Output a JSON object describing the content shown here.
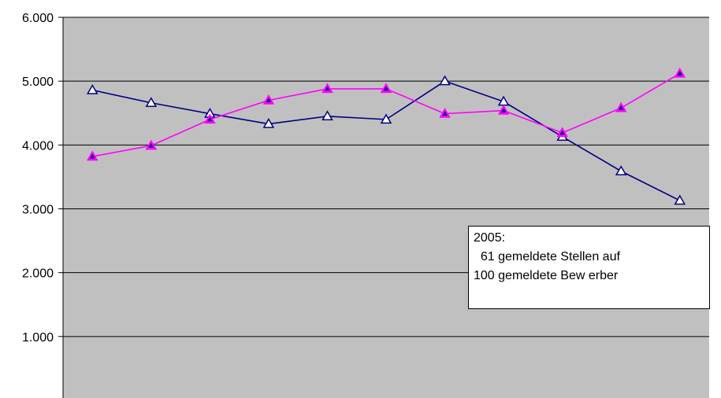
{
  "chart_data": {
    "type": "line",
    "title": "",
    "xlabel": "",
    "ylabel": "",
    "ylim": [
      0,
      6000
    ],
    "y_ticks": [
      {
        "value": 1000,
        "label": "1.000"
      },
      {
        "value": 2000,
        "label": "2.000"
      },
      {
        "value": 3000,
        "label": "3.000"
      },
      {
        "value": 4000,
        "label": "4.000"
      },
      {
        "value": 5000,
        "label": "5.000"
      },
      {
        "value": 6000,
        "label": "6.000"
      }
    ],
    "grid": true,
    "x_count": 11,
    "series": [
      {
        "color": "#000080",
        "marker": "open-triangle",
        "values": [
          4860,
          4660,
          4490,
          4330,
          4450,
          4400,
          5000,
          4680,
          4130,
          3590,
          3130
        ]
      },
      {
        "color": "#ff00ff",
        "marker": "filled-triangle",
        "values": [
          3820,
          3990,
          4400,
          4700,
          4880,
          4880,
          4490,
          4540,
          4190,
          4580,
          5120
        ]
      }
    ],
    "annotation": {
      "lines": [
        "2005:",
        "  61 gemeldete Stellen auf",
        "100 gemeldete Bew erber"
      ]
    },
    "colors": {
      "plot_background": "#c0c0c0",
      "gridline": "#000000"
    }
  }
}
